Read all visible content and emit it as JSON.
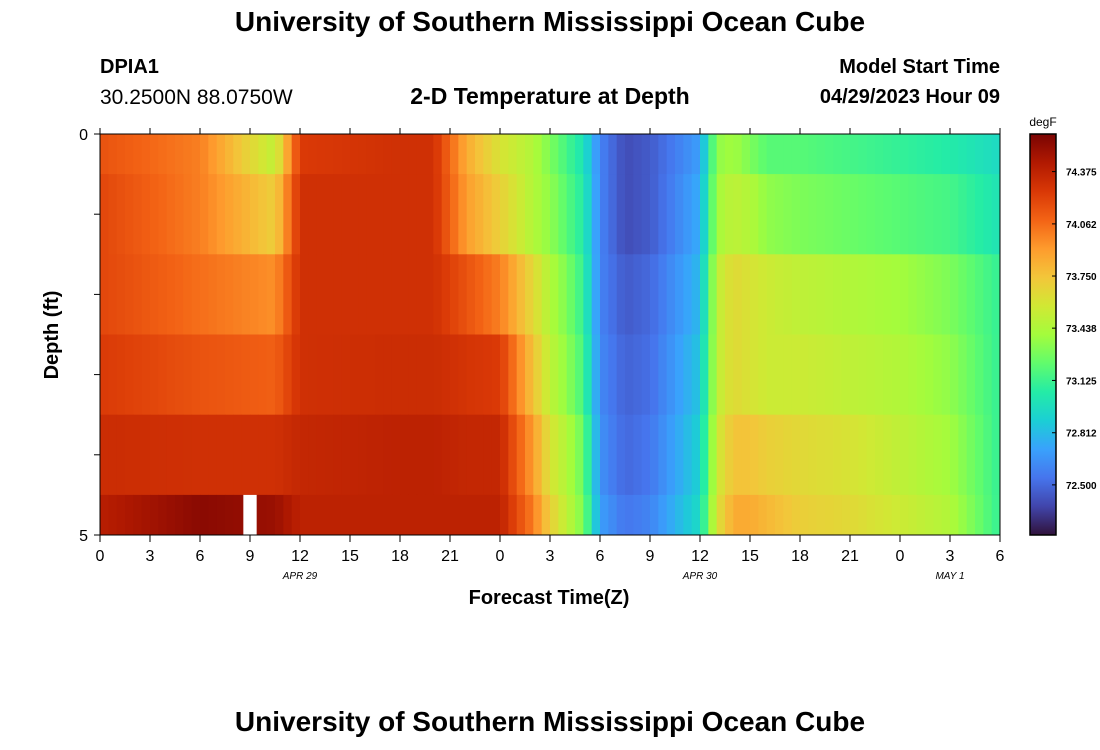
{
  "header": {
    "title": "University of Southern Mississippi Ocean Cube",
    "station": "DPIA1",
    "coordinates": "30.2500N  88.0750W",
    "subtitle": "2-D Temperature at Depth",
    "model_start_label": "Model Start Time",
    "model_start_value": "04/29/2023 Hour 09"
  },
  "footer": {
    "title": "University of Southern Mississippi Ocean Cube"
  },
  "chart_data": {
    "type": "heatmap",
    "title": "2-D Temperature at Depth",
    "xlabel": "Forecast Time(Z)",
    "ylabel": "Depth (ft)",
    "ylim": [
      0,
      5
    ],
    "x_tick_labels": [
      "0",
      "3",
      "6",
      "9",
      "12",
      "15",
      "18",
      "21",
      "0",
      "3",
      "6",
      "9",
      "12",
      "15",
      "18",
      "21",
      "0",
      "3",
      "6"
    ],
    "date_labels": [
      {
        "text": "APR 29",
        "at_tick": 4
      },
      {
        "text": "APR 30",
        "at_tick": 12
      },
      {
        "text": "MAY 1",
        "at_tick": 17
      }
    ],
    "y_tick_labels": [
      {
        "value": 0,
        "label": "0"
      },
      {
        "value": 5,
        "label": "5"
      }
    ],
    "colorbar": {
      "unit": "degF",
      "min": 72.2,
      "max": 74.6,
      "tick_values": [
        74.375,
        74.062,
        73.75,
        73.438,
        73.125,
        72.812,
        72.5
      ],
      "tick_labels": [
        "74.375",
        "74.062",
        "73.750",
        "73.438",
        "73.125",
        "72.812",
        "72.500"
      ],
      "colormap": [
        "#30123b",
        "#4145ab",
        "#4675ed",
        "#39a2fc",
        "#1bcfd4",
        "#24eca6",
        "#61fc6c",
        "#a4fc3c",
        "#d1e834",
        "#f3c63a",
        "#fe9b2d",
        "#f36315",
        "#d93806",
        "#b11901",
        "#7a0403"
      ]
    },
    "x_hours": [
      0,
      6,
      10.5,
      12,
      18,
      20,
      22,
      24,
      26,
      27,
      28,
      29,
      30,
      31.5,
      33,
      36,
      37,
      38,
      39,
      40,
      42,
      45,
      48,
      51,
      54
    ],
    "depth_rows": [
      {
        "depth_ft": [
          0.0,
          0.5
        ],
        "temps": [
          74.15,
          74.0,
          73.5,
          74.25,
          74.3,
          74.3,
          73.85,
          73.6,
          73.45,
          73.3,
          73.15,
          73.0,
          72.6,
          72.4,
          72.45,
          72.7,
          73.35,
          73.4,
          73.3,
          73.2,
          73.2,
          73.15,
          73.1,
          73.05,
          72.95
        ]
      },
      {
        "depth_ft": [
          0.5,
          1.5
        ],
        "temps": [
          74.2,
          74.0,
          73.7,
          74.3,
          74.3,
          74.3,
          73.9,
          73.7,
          73.45,
          73.35,
          73.2,
          73.05,
          72.6,
          72.4,
          72.45,
          72.75,
          73.4,
          73.5,
          73.45,
          73.35,
          73.3,
          73.25,
          73.2,
          73.15,
          73.0
        ]
      },
      {
        "depth_ft": [
          1.5,
          2.5
        ],
        "temps": [
          74.2,
          74.05,
          73.95,
          74.3,
          74.3,
          74.3,
          74.15,
          74.0,
          73.65,
          73.45,
          73.3,
          73.1,
          72.6,
          72.45,
          72.5,
          72.8,
          73.5,
          73.65,
          73.6,
          73.55,
          73.5,
          73.45,
          73.4,
          73.3,
          73.1
        ]
      },
      {
        "depth_ft": [
          2.5,
          3.5
        ],
        "temps": [
          74.25,
          74.15,
          74.1,
          74.3,
          74.32,
          74.32,
          74.28,
          74.25,
          73.75,
          73.5,
          73.35,
          73.15,
          72.62,
          72.48,
          72.52,
          72.85,
          73.5,
          73.65,
          73.6,
          73.55,
          73.55,
          73.5,
          73.45,
          73.35,
          73.1
        ]
      },
      {
        "depth_ft": [
          3.5,
          4.5
        ],
        "temps": [
          74.32,
          74.3,
          74.3,
          74.35,
          74.38,
          74.38,
          74.35,
          74.35,
          73.9,
          73.6,
          73.45,
          73.25,
          72.65,
          72.5,
          72.55,
          72.9,
          73.55,
          73.75,
          73.75,
          73.7,
          73.65,
          73.6,
          73.5,
          73.4,
          73.1
        ]
      },
      {
        "depth_ft": [
          4.5,
          5.0
        ],
        "temps": [
          74.4,
          74.55,
          74.5,
          74.38,
          74.38,
          74.38,
          74.38,
          74.38,
          74.0,
          73.7,
          73.5,
          73.3,
          72.7,
          72.55,
          72.6,
          72.95,
          73.6,
          73.85,
          73.85,
          73.8,
          73.7,
          73.65,
          73.55,
          73.45,
          73.1
        ]
      }
    ],
    "gap": {
      "hour_start": 8.6,
      "hour_end": 9.4,
      "depth_ft": [
        4.5,
        5.0
      ]
    }
  }
}
